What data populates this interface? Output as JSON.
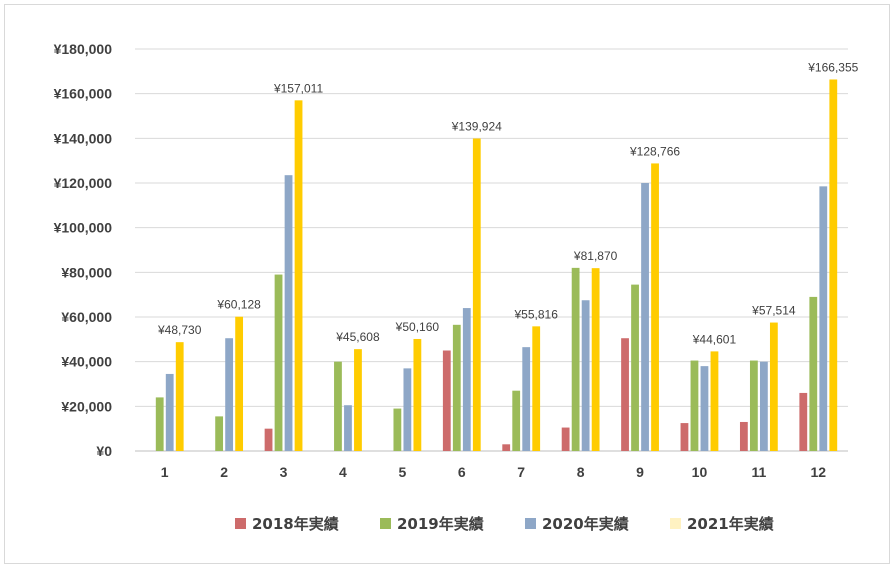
{
  "chart_data": {
    "type": "bar",
    "categories": [
      "1",
      "2",
      "3",
      "4",
      "5",
      "6",
      "7",
      "8",
      "9",
      "10",
      "11",
      "12"
    ],
    "ylim": [
      0,
      180000
    ],
    "yticks": [
      0,
      20000,
      40000,
      60000,
      80000,
      100000,
      120000,
      140000,
      160000,
      180000
    ],
    "ytick_labels": [
      "¥0",
      "¥20,000",
      "¥40,000",
      "¥60,000",
      "¥80,000",
      "¥100,000",
      "¥120,000",
      "¥140,000",
      "¥160,000",
      "¥180,000"
    ],
    "grid": true,
    "legend_position": "bottom",
    "series": [
      {
        "name": "2018年実績",
        "color": "#cd6b6b",
        "values": [
          0,
          0,
          10000,
          0,
          0,
          45000,
          3000,
          10500,
          50500,
          12500,
          13000,
          26000
        ]
      },
      {
        "name": "2019年実績",
        "color": "#9bbb59",
        "values": [
          24000,
          15500,
          79000,
          40000,
          19000,
          56500,
          27000,
          82000,
          74500,
          40500,
          40500,
          69000
        ]
      },
      {
        "name": "2020年実績",
        "color": "#8ea7c7",
        "values": [
          34500,
          50500,
          123500,
          20500,
          37000,
          64000,
          46500,
          67500,
          120000,
          38000,
          40000,
          118500
        ]
      },
      {
        "name": "2021年実績",
        "color": "#ffcc00",
        "legend_color": "#fff2c2",
        "values": [
          48730,
          60128,
          157011,
          45608,
          50160,
          139924,
          55816,
          81870,
          128766,
          44601,
          57514,
          166355
        ],
        "labels": [
          "¥48,730",
          "¥60,128",
          "¥157,011",
          "¥45,608",
          "¥50,160",
          "¥139,924",
          "¥55,816",
          "¥81,870",
          "¥128,766",
          "¥44,601",
          "¥57,514",
          "¥166,355"
        ]
      }
    ]
  }
}
